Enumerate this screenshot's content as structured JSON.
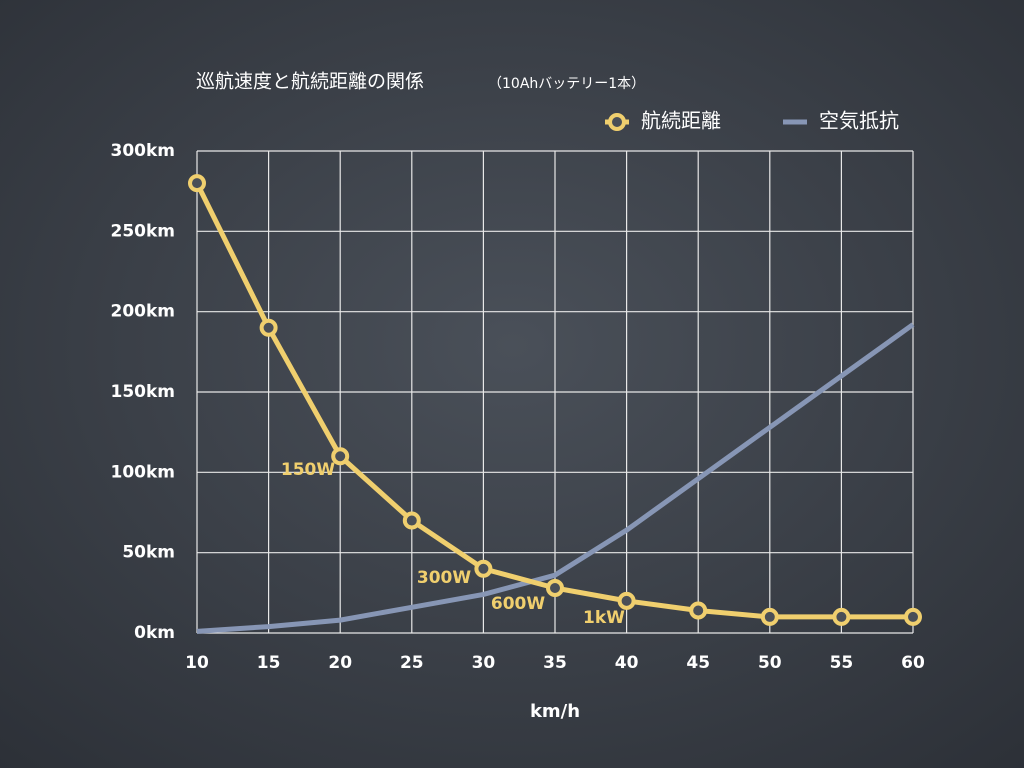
{
  "chart_data": {
    "type": "line",
    "title": "巡航速度と航続距離の関係",
    "subtitle": "（10Ahバッテリー1本）",
    "x_label": "km/h",
    "x": [
      10,
      15,
      20,
      25,
      30,
      35,
      40,
      45,
      50,
      55,
      60
    ],
    "series": [
      {
        "name": "航続距離",
        "color": "#f0cf6e",
        "marker": "circle",
        "values": [
          280,
          190,
          110,
          70,
          40,
          28,
          20,
          14,
          10,
          10,
          10
        ]
      },
      {
        "name": "空気抵抗",
        "color": "#8796b5",
        "marker": "none",
        "values": [
          1,
          4,
          8,
          16,
          24,
          36,
          64,
          96,
          128,
          160,
          192
        ]
      }
    ],
    "annotations": [
      "150W",
      "300W",
      "600W",
      "1kW"
    ],
    "xlim": [
      10,
      60
    ],
    "xticks": [
      10,
      15,
      20,
      25,
      30,
      35,
      40,
      45,
      50,
      55,
      60
    ],
    "ylim": [
      0,
      300
    ],
    "yticks": [
      {
        "value": 0,
        "label": "0km"
      },
      {
        "value": 50,
        "label": "50km"
      },
      {
        "value": 100,
        "label": "100km"
      },
      {
        "value": 150,
        "label": "150km"
      },
      {
        "value": 200,
        "label": "200km"
      },
      {
        "value": 250,
        "label": "250km"
      },
      {
        "value": 300,
        "label": "300km"
      }
    ],
    "grid": true,
    "legend": "top-right"
  }
}
